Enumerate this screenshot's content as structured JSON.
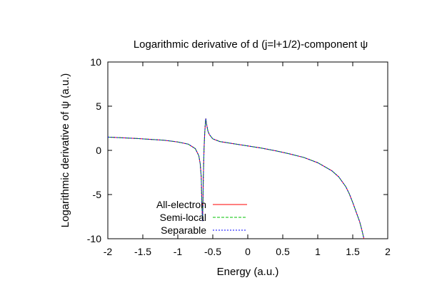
{
  "chart_data": {
    "type": "line",
    "title": "Logarithmic derivative of d (j=l+1/2)-component ψ",
    "xlabel": "Energy (a.u.)",
    "ylabel": "Logarithmic derivative of ψ (a.u.)",
    "xlim": [
      -2,
      2
    ],
    "ylim": [
      -10,
      10
    ],
    "xticks": [
      -2,
      -1.5,
      -1,
      -0.5,
      0,
      0.5,
      1,
      1.5,
      2
    ],
    "xtick_labels": [
      "-2",
      "-1.5",
      "-1",
      "-0.5",
      "0",
      "0.5",
      "1",
      "1.5",
      "2"
    ],
    "yticks": [
      -10,
      -5,
      0,
      5,
      10
    ],
    "ytick_labels": [
      "-10",
      "-5",
      "0",
      "5",
      "10"
    ],
    "grid": false,
    "legend_position": "bottom-left",
    "series": [
      {
        "name": "All-electron",
        "color": "#ff0000",
        "dash": "solid",
        "x": [
          -2.0,
          -1.6,
          -1.2,
          -1.0,
          -0.85,
          -0.75,
          -0.7,
          -0.68,
          -0.665,
          -0.655,
          -0.645,
          -0.635,
          -0.625,
          -0.615,
          -0.605,
          -0.6,
          -0.59,
          -0.57,
          -0.55,
          -0.5,
          -0.4,
          -0.2,
          0.0,
          0.2,
          0.4,
          0.6,
          0.8,
          1.0,
          1.2,
          1.3,
          1.4,
          1.45,
          1.5,
          1.55,
          1.6,
          1.63,
          1.66
        ],
        "y": [
          1.5,
          1.35,
          1.15,
          0.95,
          0.7,
          0.2,
          -0.6,
          -1.5,
          -3.0,
          -6.5,
          -8.0,
          -3.0,
          0.2,
          2.0,
          3.2,
          3.6,
          3.0,
          2.2,
          1.8,
          1.3,
          1.0,
          0.75,
          0.5,
          0.25,
          -0.05,
          -0.4,
          -0.8,
          -1.4,
          -2.3,
          -3.0,
          -4.1,
          -4.9,
          -5.9,
          -7.0,
          -8.1,
          -9.0,
          -10.0
        ]
      },
      {
        "name": "Semi-local",
        "color": "#00c000",
        "dash": "dashed",
        "x": [
          -2.0,
          -1.6,
          -1.2,
          -1.0,
          -0.85,
          -0.75,
          -0.7,
          -0.68,
          -0.665,
          -0.655,
          -0.645,
          -0.635,
          -0.625,
          -0.615,
          -0.605,
          -0.6,
          -0.59,
          -0.57,
          -0.55,
          -0.5,
          -0.4,
          -0.2,
          0.0,
          0.2,
          0.4,
          0.6,
          0.8,
          1.0,
          1.2,
          1.3,
          1.4,
          1.45,
          1.5,
          1.55,
          1.6,
          1.63,
          1.66
        ],
        "y": [
          1.5,
          1.35,
          1.15,
          0.95,
          0.7,
          0.2,
          -0.6,
          -1.5,
          -3.0,
          -6.5,
          -8.0,
          -3.0,
          0.2,
          2.0,
          3.2,
          3.6,
          3.0,
          2.2,
          1.8,
          1.3,
          1.0,
          0.75,
          0.5,
          0.25,
          -0.05,
          -0.4,
          -0.8,
          -1.4,
          -2.3,
          -3.0,
          -4.1,
          -4.9,
          -5.9,
          -7.0,
          -8.1,
          -9.0,
          -10.0
        ]
      },
      {
        "name": "Separable",
        "color": "#0000ff",
        "dash": "dotted",
        "x": [
          -2.0,
          -1.6,
          -1.2,
          -1.0,
          -0.85,
          -0.75,
          -0.7,
          -0.68,
          -0.665,
          -0.655,
          -0.645,
          -0.635,
          -0.625,
          -0.615,
          -0.605,
          -0.6,
          -0.59,
          -0.57,
          -0.55,
          -0.5,
          -0.4,
          -0.2,
          0.0,
          0.2,
          0.4,
          0.6,
          0.8,
          1.0,
          1.2,
          1.3,
          1.4,
          1.45,
          1.5,
          1.55,
          1.6,
          1.63,
          1.66
        ],
        "y": [
          1.5,
          1.35,
          1.15,
          0.95,
          0.7,
          0.2,
          -0.6,
          -1.5,
          -3.0,
          -6.5,
          -8.0,
          -3.0,
          0.2,
          2.0,
          3.2,
          3.6,
          3.0,
          2.2,
          1.8,
          1.3,
          1.0,
          0.75,
          0.5,
          0.25,
          -0.05,
          -0.4,
          -0.8,
          -1.4,
          -2.3,
          -3.0,
          -4.1,
          -4.9,
          -5.9,
          -7.0,
          -8.1,
          -9.0,
          -10.0
        ]
      }
    ]
  }
}
